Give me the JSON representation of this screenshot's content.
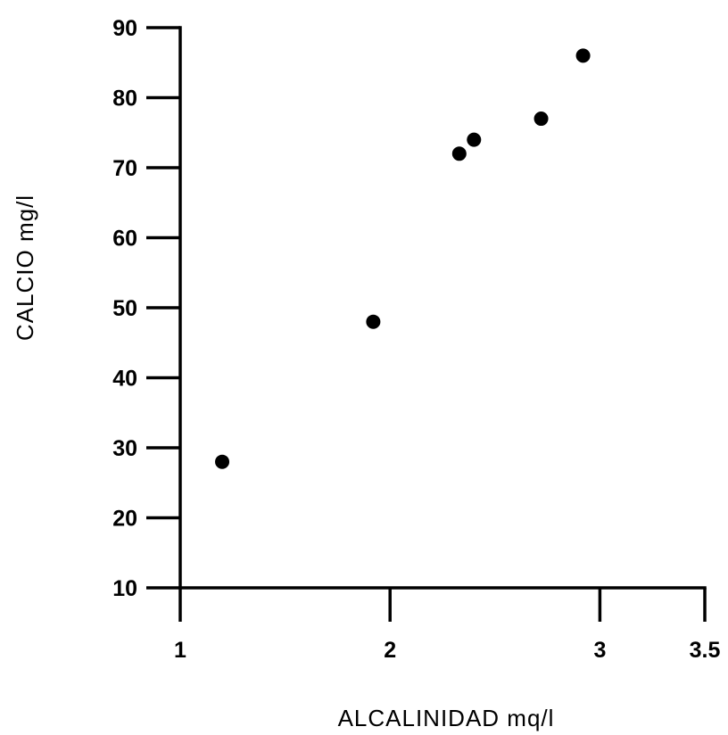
{
  "chart_data": {
    "type": "scatter",
    "title": "",
    "xlabel": "ALCALINIDAD  mq/l",
    "ylabel": "CALCIO  mg/l",
    "xlim": [
      1,
      3.5
    ],
    "ylim": [
      10,
      90
    ],
    "x_ticks": [
      1,
      2,
      3,
      3.5
    ],
    "x_tick_labels": [
      "1",
      "2",
      "3",
      "3.5"
    ],
    "y_ticks": [
      10,
      20,
      30,
      40,
      50,
      60,
      70,
      80,
      90
    ],
    "y_tick_labels": [
      "10",
      "20",
      "30",
      "40",
      "50",
      "60",
      "70",
      "80",
      "90"
    ],
    "grid": false,
    "legend": "none",
    "marker_color": "#000000",
    "series": [
      {
        "x": [
          1.2,
          1.92,
          2.33,
          2.4,
          2.72,
          2.92
        ],
        "y": [
          28,
          48,
          72,
          74,
          77,
          86
        ]
      }
    ]
  }
}
